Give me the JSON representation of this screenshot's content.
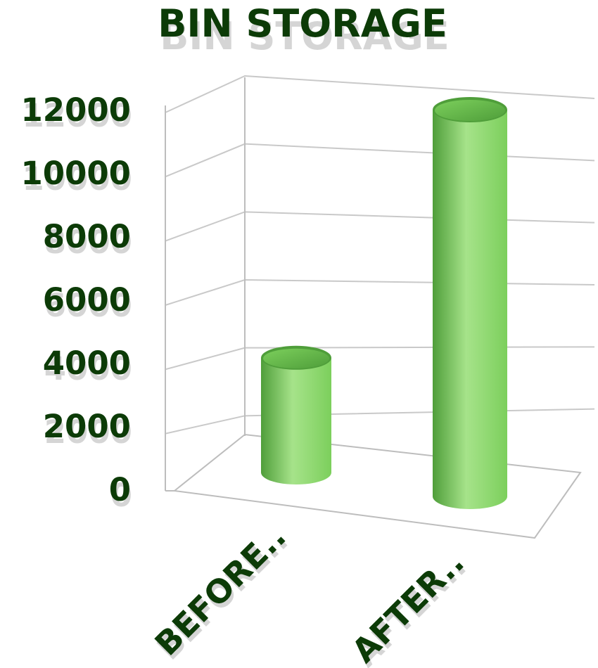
{
  "chart_data": {
    "type": "bar",
    "style": "3d-cylinder",
    "title": "BIN STORAGE",
    "categories": [
      "BEFORE..",
      "AFTER.."
    ],
    "values": [
      3400,
      12000
    ],
    "ylim": [
      0,
      12000
    ],
    "yticks": [
      0,
      2000,
      4000,
      6000,
      8000,
      10000,
      12000
    ],
    "yticklabels": [
      "0",
      "2000",
      "4000",
      "6000",
      "8000",
      "10000",
      "12000"
    ],
    "grid": true,
    "legend": "none",
    "colors": {
      "bar": "#7ccf5c",
      "bar_dark": "#4f9e3a",
      "bar_light": "#a6e38a",
      "text": "#0c3b07",
      "grid": "#c9c9c9"
    }
  }
}
